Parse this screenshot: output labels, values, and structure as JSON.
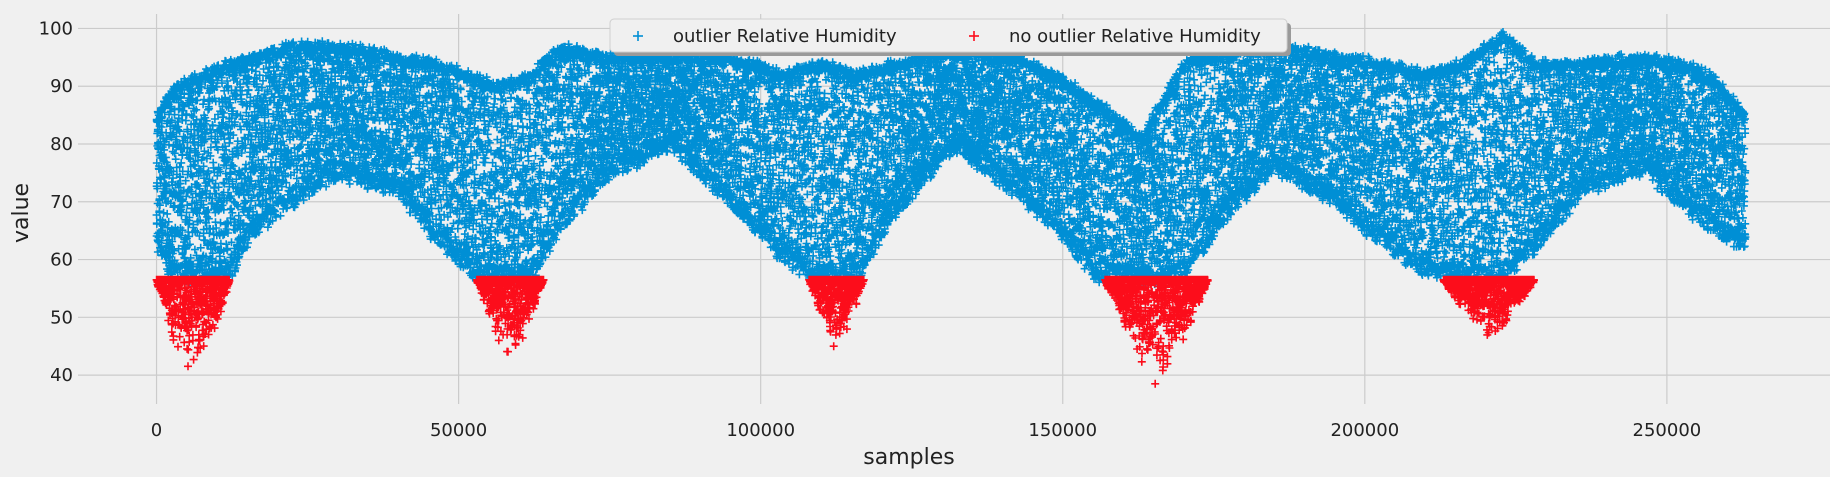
{
  "chart_data": {
    "type": "scatter",
    "title": "",
    "xlabel": "samples",
    "ylabel": "value",
    "xlim": [
      -13000,
      277000
    ],
    "ylim": [
      35,
      102.5
    ],
    "xticks": [
      0,
      50000,
      100000,
      150000,
      200000,
      250000
    ],
    "yticks": [
      40,
      50,
      60,
      70,
      80,
      90,
      100
    ],
    "grid": true,
    "legend_position": "top-center",
    "marker": "+",
    "series": [
      {
        "name": "outlier Relative Humidity",
        "color": "#008fd5",
        "band_profile": [
          {
            "x": 0,
            "lo": 62,
            "hi": 86
          },
          {
            "x": 3000,
            "lo": 57,
            "hi": 91
          },
          {
            "x": 8000,
            "lo": 57,
            "hi": 93
          },
          {
            "x": 12000,
            "lo": 57,
            "hi": 95
          },
          {
            "x": 16000,
            "lo": 65,
            "hi": 96
          },
          {
            "x": 22000,
            "lo": 70,
            "hi": 98
          },
          {
            "x": 30000,
            "lo": 75,
            "hi": 98
          },
          {
            "x": 40000,
            "lo": 72,
            "hi": 96
          },
          {
            "x": 46000,
            "lo": 64,
            "hi": 95
          },
          {
            "x": 52000,
            "lo": 58,
            "hi": 93
          },
          {
            "x": 56000,
            "lo": 57,
            "hi": 91
          },
          {
            "x": 62000,
            "lo": 57,
            "hi": 93
          },
          {
            "x": 67000,
            "lo": 66,
            "hi": 98
          },
          {
            "x": 75000,
            "lo": 75,
            "hi": 96
          },
          {
            "x": 85000,
            "lo": 80,
            "hi": 97
          },
          {
            "x": 95000,
            "lo": 70,
            "hi": 96
          },
          {
            "x": 104000,
            "lo": 60,
            "hi": 93
          },
          {
            "x": 110000,
            "lo": 57,
            "hi": 95
          },
          {
            "x": 116000,
            "lo": 57,
            "hi": 93
          },
          {
            "x": 122000,
            "lo": 68,
            "hi": 95
          },
          {
            "x": 132000,
            "lo": 80,
            "hi": 97
          },
          {
            "x": 142000,
            "lo": 72,
            "hi": 96
          },
          {
            "x": 150000,
            "lo": 64,
            "hi": 92
          },
          {
            "x": 156000,
            "lo": 57,
            "hi": 88
          },
          {
            "x": 163000,
            "lo": 57,
            "hi": 82
          },
          {
            "x": 170000,
            "lo": 57,
            "hi": 95
          },
          {
            "x": 177000,
            "lo": 68,
            "hi": 97
          },
          {
            "x": 185000,
            "lo": 76,
            "hi": 98
          },
          {
            "x": 195000,
            "lo": 70,
            "hi": 96
          },
          {
            "x": 203000,
            "lo": 63,
            "hi": 95
          },
          {
            "x": 210000,
            "lo": 58,
            "hi": 93
          },
          {
            "x": 216000,
            "lo": 57,
            "hi": 95
          },
          {
            "x": 223000,
            "lo": 57,
            "hi": 100
          },
          {
            "x": 228000,
            "lo": 62,
            "hi": 95
          },
          {
            "x": 236000,
            "lo": 72,
            "hi": 95
          },
          {
            "x": 246000,
            "lo": 76,
            "hi": 96
          },
          {
            "x": 252000,
            "lo": 70,
            "hi": 95
          },
          {
            "x": 257000,
            "lo": 66,
            "hi": 93
          },
          {
            "x": 263000,
            "lo": 62,
            "hi": 86
          }
        ]
      },
      {
        "name": "no outlier Relative Humidity",
        "color": "#fc0d1b",
        "threshold": 56.5,
        "clusters": [
          {
            "x_start": 0,
            "x_end": 12000,
            "min_value": 37
          },
          {
            "x_start": 53000,
            "x_end": 64000,
            "min_value": 41
          },
          {
            "x_start": 108000,
            "x_end": 117000,
            "min_value": 42.5
          },
          {
            "x_start": 157000,
            "x_end": 174000,
            "min_value": 37
          },
          {
            "x_start": 213000,
            "x_end": 228000,
            "min_value": 44.5
          }
        ]
      }
    ]
  }
}
